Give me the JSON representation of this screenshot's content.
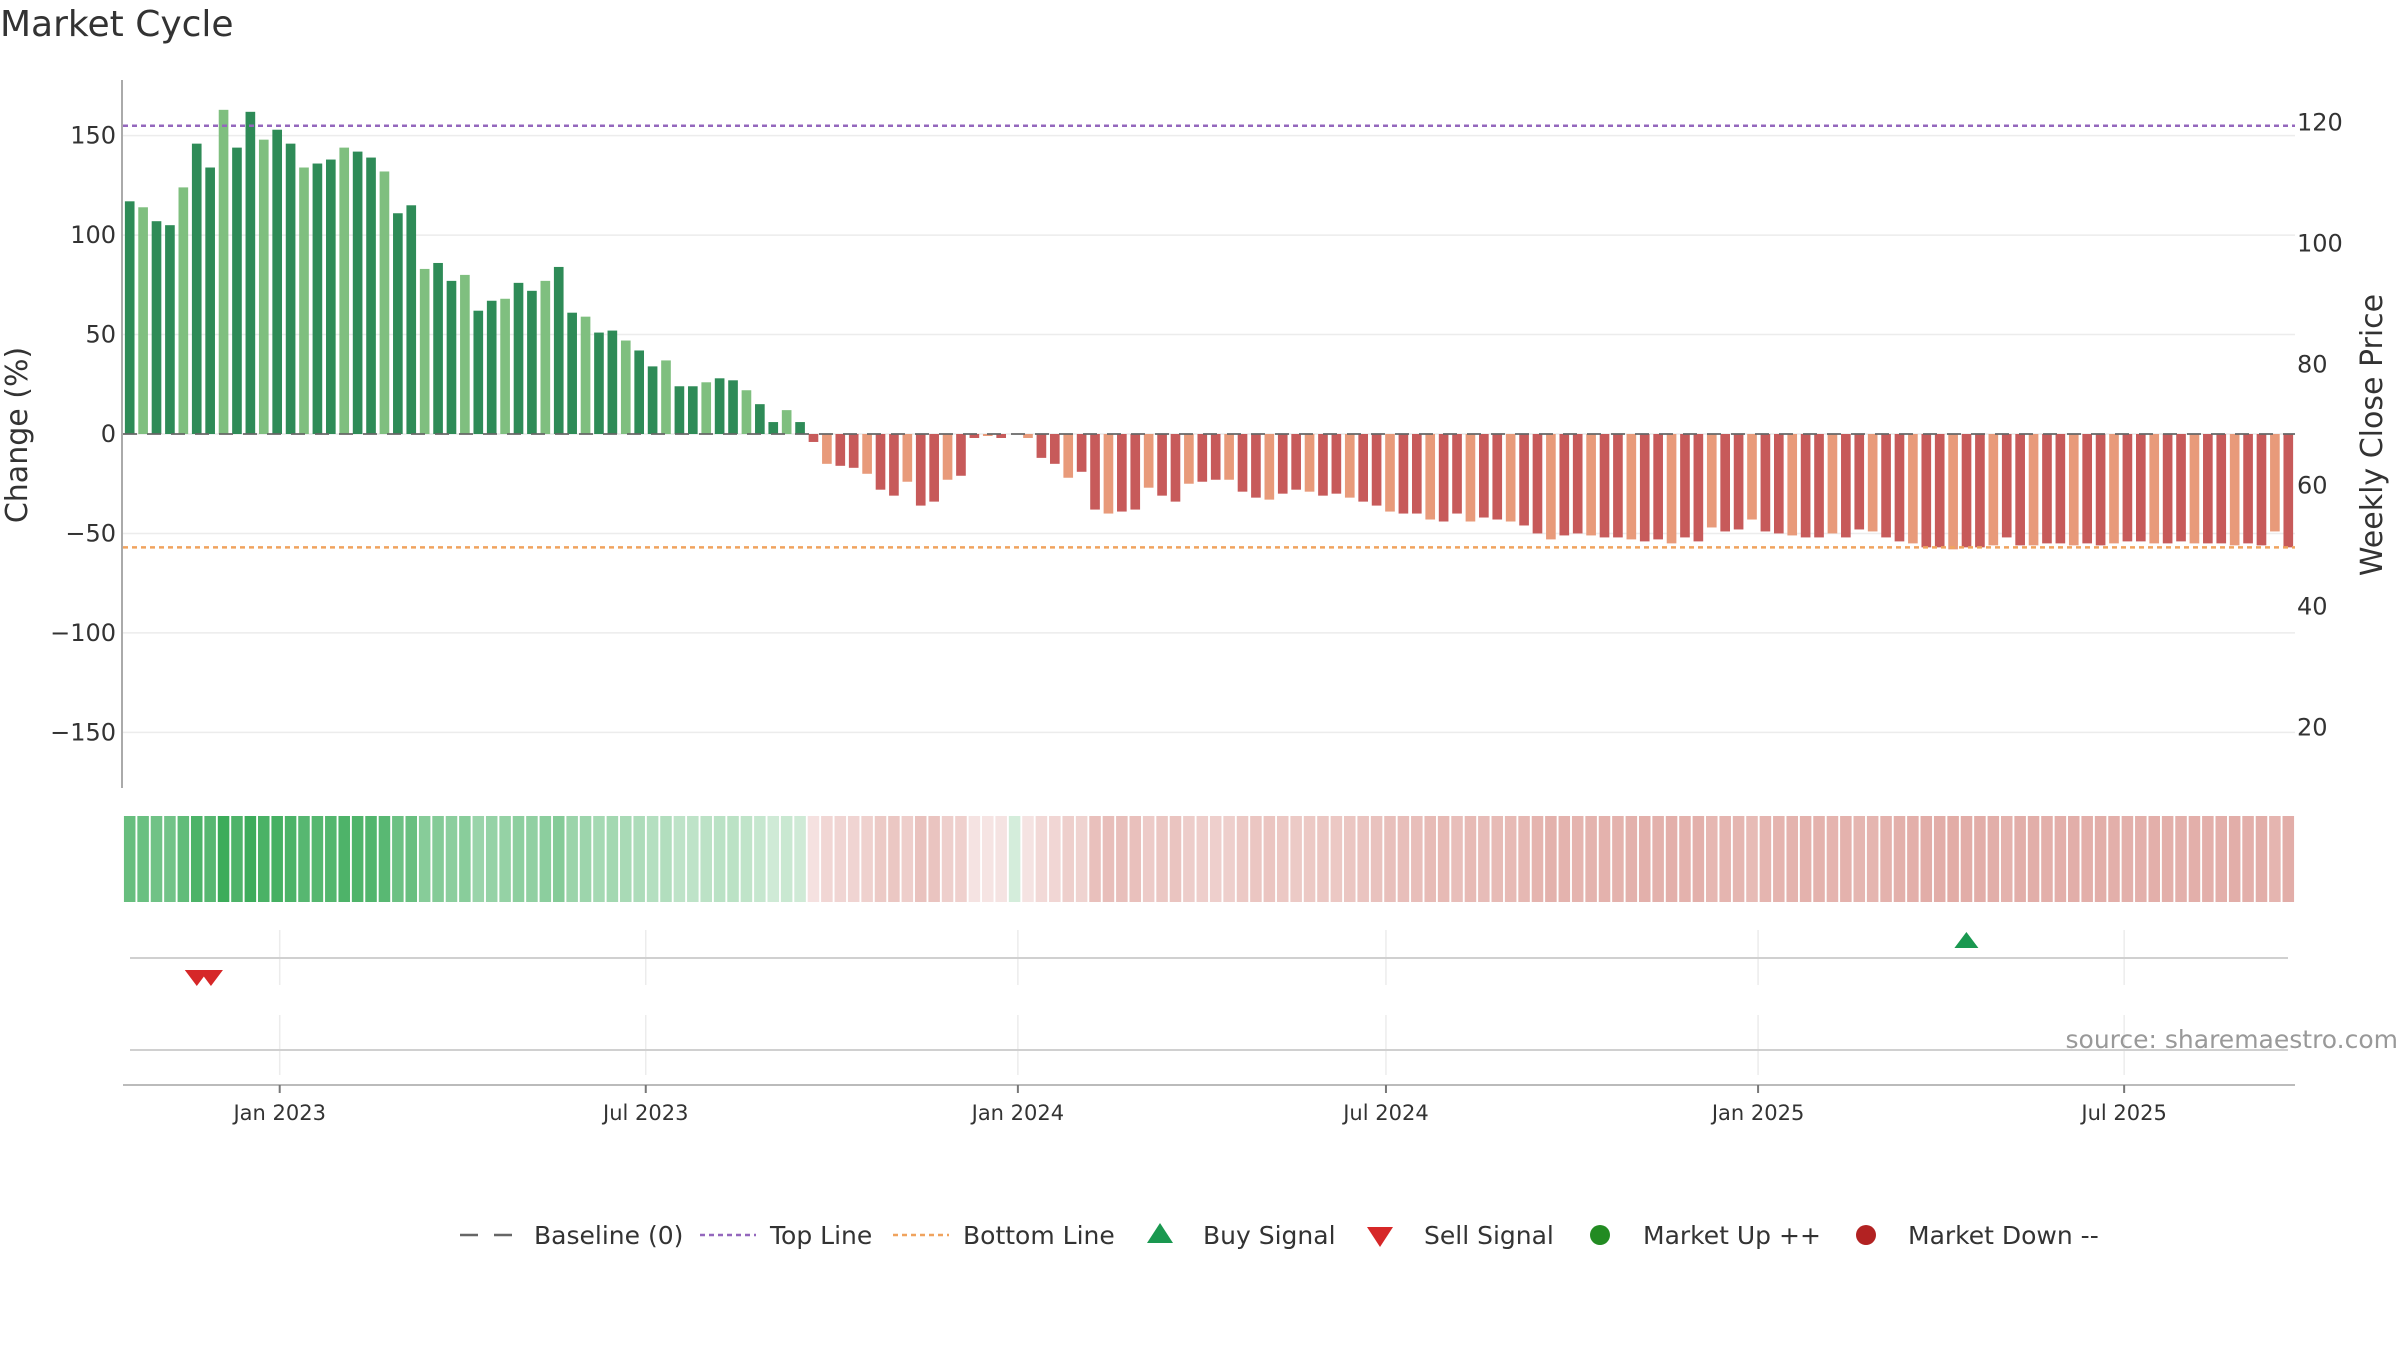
{
  "chart_data": {
    "type": "bar",
    "title": "Market Cycle",
    "ylabel": "Change (%)",
    "y2label": "Weekly Close Price",
    "ylim": [
      -178,
      178
    ],
    "y2lim": [
      10,
      127
    ],
    "yticks": [
      -150,
      -100,
      -50,
      0,
      50,
      100,
      150
    ],
    "y2ticks": [
      20,
      40,
      60,
      80,
      100,
      120
    ],
    "top_line": 155,
    "bottom_line": -57,
    "baseline": 0,
    "x_start": "2022-10-17",
    "x_end": "2025-09-22",
    "xticks": [
      {
        "date": "2023-01-01",
        "label": "Jan 2023"
      },
      {
        "date": "2023-07-01",
        "label": "Jul 2023"
      },
      {
        "date": "2024-01-01",
        "label": "Jan 2024"
      },
      {
        "date": "2024-07-01",
        "label": "Jul 2024"
      },
      {
        "date": "2025-01-01",
        "label": "Jan 2025"
      },
      {
        "date": "2025-07-01",
        "label": "Jul 2025"
      }
    ],
    "values": [
      117,
      114,
      107,
      105,
      124,
      146,
      134,
      163,
      144,
      162,
      148,
      153,
      146,
      134,
      136,
      138,
      144,
      142,
      139,
      132,
      111,
      115,
      83,
      86,
      77,
      80,
      62,
      67,
      68,
      76,
      72,
      77,
      84,
      61,
      59,
      51,
      52,
      47,
      42,
      34,
      37,
      24,
      24,
      26,
      28,
      27,
      22,
      15,
      6,
      12,
      6,
      -4,
      -15,
      -16,
      -17,
      -20,
      -28,
      -31,
      -24,
      -36,
      -34,
      -23,
      -21,
      -2,
      -1,
      -2,
      0,
      -2,
      -12,
      -15,
      -22,
      -19,
      -38,
      -40,
      -39,
      -38,
      -27,
      -31,
      -34,
      -25,
      -24,
      -23,
      -23,
      -29,
      -32,
      -33,
      -30,
      -28,
      -29,
      -31,
      -30,
      -32,
      -34,
      -36,
      -39,
      -40,
      -40,
      -43,
      -44,
      -40,
      -44,
      -42,
      -43,
      -44,
      -46,
      -50,
      -53,
      -51,
      -50,
      -51,
      -52,
      -52,
      -53,
      -54,
      -53,
      -55,
      -52,
      -54,
      -47,
      -49,
      -48,
      -43,
      -49,
      -50,
      -51,
      -52,
      -52,
      -50,
      -52,
      -48,
      -49,
      -52,
      -54,
      -55,
      -57,
      -57,
      -58,
      -57,
      -57,
      -56,
      -52,
      -56,
      -56,
      -55,
      -55,
      -56,
      -55,
      -56,
      -55,
      -54,
      -54,
      -55,
      -55,
      -54,
      -55,
      -55,
      -55,
      -56,
      -55,
      -56,
      -49,
      -57
    ],
    "buy_signals": [
      "2025-04-14"
    ],
    "sell_signals": [
      "2022-11-21",
      "2022-11-28"
    ],
    "legend": [
      "Baseline (0)",
      "Top Line",
      "Bottom Line",
      "Buy Signal",
      "Sell Signal",
      "Market Up ++",
      "Market Down --"
    ],
    "legend_placement": "bottom-center",
    "colors": {
      "up_dark": "#2e8b57",
      "up_light": "#7fbf7f",
      "down_dark": "#c75a5a",
      "down_light": "#e89a7a",
      "top_line": "#9467bd",
      "bottom_line": "#f0a35e",
      "baseline": "#666666",
      "buy": "#1a9850",
      "sell": "#d62728",
      "market_up": "#228b22",
      "market_down": "#b22222",
      "strip_up": "#3cac5a",
      "strip_down": "#d27f77"
    },
    "source": "source: sharemaestro.com"
  }
}
